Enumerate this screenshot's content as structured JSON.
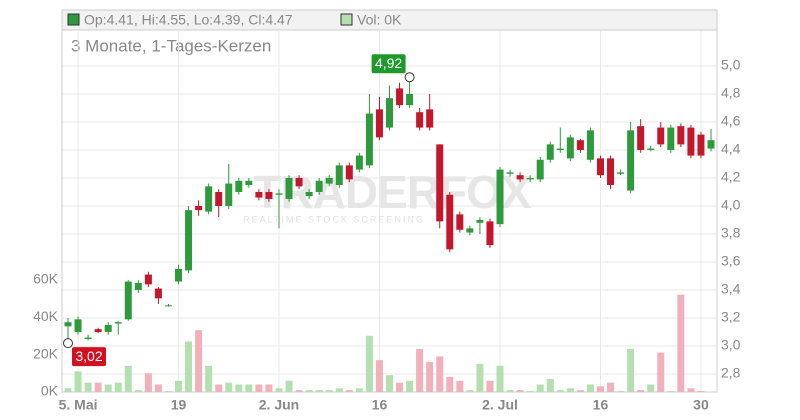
{
  "chart_data": {
    "type": "candlestick",
    "title": "3 Monate, 1-Tages-Kerzen",
    "legend": [
      "Op:4.41, Hi:4.55, Lo:4.39, Cl:4.47",
      "Vol: 0K"
    ],
    "watermark": {
      "title": "TRADERFOX",
      "subtitle": "REALTIME STOCK SCREENING"
    },
    "categories": [
      null,
      "5. Mai",
      null,
      null,
      null,
      null,
      null,
      null,
      null,
      null,
      null,
      "19",
      null,
      null,
      null,
      null,
      null,
      null,
      null,
      null,
      null,
      "2. Jun",
      null,
      null,
      null,
      null,
      null,
      null,
      null,
      null,
      null,
      "16",
      null,
      null,
      null,
      null,
      null,
      null,
      null,
      null,
      null,
      null,
      null,
      "2. Jul",
      null,
      null,
      null,
      null,
      null,
      null,
      null,
      null,
      null,
      "16",
      null,
      null,
      null,
      null,
      null,
      null,
      null,
      null,
      null,
      "30",
      null
    ],
    "open": [
      3.14,
      3.1,
      3.05,
      3.12,
      3.1,
      3.16,
      3.19,
      3.4,
      3.51,
      3.41,
      3.29,
      3.46,
      3.54,
      4.0,
      3.96,
      4.1,
      4.0,
      4.1,
      4.15,
      4.1,
      4.1,
      4.08,
      4.05,
      4.2,
      4.07,
      4.1,
      4.16,
      4.15,
      4.29,
      4.26,
      4.29,
      4.69,
      4.56,
      4.84,
      4.72,
      4.67,
      4.69,
      4.44,
      4.08,
      3.94,
      3.81,
      3.88,
      3.89,
      3.87,
      4.23,
      4.22,
      4.19,
      4.19,
      4.33,
      4.4,
      4.34,
      4.47,
      4.33,
      4.34,
      4.34,
      4.23,
      4.11,
      4.57,
      4.4,
      4.56,
      4.4,
      4.57,
      4.56,
      4.51,
      4.41
    ],
    "high": [
      3.2,
      3.21,
      3.08,
      3.13,
      3.17,
      3.18,
      3.47,
      3.47,
      3.53,
      3.42,
      3.3,
      3.58,
      4.0,
      4.04,
      4.16,
      4.12,
      4.3,
      4.2,
      4.2,
      4.12,
      4.12,
      4.12,
      4.22,
      4.22,
      4.12,
      4.2,
      4.22,
      4.31,
      4.31,
      4.38,
      4.8,
      4.78,
      4.86,
      4.88,
      4.92,
      4.7,
      4.8,
      4.44,
      4.1,
      3.96,
      3.86,
      3.92,
      3.91,
      4.28,
      4.26,
      4.24,
      4.22,
      4.35,
      4.46,
      4.56,
      4.51,
      4.48,
      4.56,
      4.36,
      4.36,
      4.26,
      4.6,
      4.62,
      4.43,
      4.6,
      4.58,
      4.59,
      4.58,
      4.53,
      4.55
    ],
    "low": [
      3.02,
      3.08,
      3.04,
      3.09,
      3.08,
      3.08,
      3.18,
      3.38,
      3.42,
      3.3,
      3.28,
      3.44,
      3.52,
      3.93,
      3.94,
      3.92,
      3.98,
      4.08,
      4.13,
      4.04,
      4.03,
      3.84,
      4.03,
      4.12,
      4.05,
      4.08,
      4.14,
      4.13,
      4.17,
      4.24,
      4.27,
      4.47,
      4.54,
      4.7,
      4.7,
      4.54,
      4.54,
      3.84,
      3.67,
      3.81,
      3.79,
      3.8,
      3.7,
      3.85,
      4.21,
      4.17,
      4.17,
      4.17,
      4.31,
      4.38,
      4.32,
      4.38,
      4.31,
      4.2,
      4.12,
      4.22,
      4.09,
      4.38,
      4.39,
      4.42,
      4.38,
      4.42,
      4.34,
      4.34,
      4.39
    ],
    "close": [
      3.17,
      3.19,
      3.06,
      3.1,
      3.15,
      3.17,
      3.46,
      3.45,
      3.44,
      3.34,
      3.29,
      3.55,
      3.97,
      3.97,
      4.14,
      4.0,
      4.16,
      4.18,
      4.18,
      4.06,
      4.05,
      4.09,
      4.2,
      4.14,
      4.1,
      4.18,
      4.2,
      4.29,
      4.19,
      4.36,
      4.66,
      4.49,
      4.77,
      4.72,
      4.8,
      4.56,
      4.56,
      3.89,
      3.69,
      3.83,
      3.84,
      3.9,
      3.72,
      4.26,
      4.24,
      4.19,
      4.2,
      4.33,
      4.44,
      4.41,
      4.49,
      4.4,
      4.54,
      4.22,
      4.15,
      4.24,
      4.54,
      4.4,
      4.41,
      4.44,
      4.56,
      4.44,
      4.36,
      4.36,
      4.47
    ],
    "volume": [
      2,
      11,
      5,
      5,
      4,
      5,
      14,
      1,
      10,
      4,
      0.5,
      6,
      27,
      33,
      14,
      4,
      5,
      4,
      4,
      4,
      4,
      2,
      6,
      1,
      1,
      1,
      1,
      2,
      1,
      2,
      30,
      17,
      9,
      5,
      6,
      23,
      16,
      19,
      8,
      6,
      1,
      15,
      6,
      14,
      1,
      1,
      0.5,
      4,
      7,
      1,
      2,
      1,
      4,
      3,
      5,
      0.5,
      23,
      1,
      4,
      21,
      0.5,
      52,
      2,
      0.5,
      0
    ],
    "up_color": "#2e9a3c",
    "down_color": "#c3172b",
    "up_volume_color": "#b4dfae",
    "down_volume_color": "#f1b0ba",
    "ylim": [
      2.671,
      5.4
    ],
    "yticks": [
      {
        "value": 2.8,
        "label": "2,8"
      },
      {
        "value": 3.0,
        "label": "3,0"
      },
      {
        "value": 3.2,
        "label": "3,2"
      },
      {
        "value": 3.4,
        "label": "3,4"
      },
      {
        "value": 3.6,
        "label": "3,6"
      },
      {
        "value": 3.8,
        "label": "3,8"
      },
      {
        "value": 4.0,
        "label": "4,0"
      },
      {
        "value": 4.2,
        "label": "4,2"
      },
      {
        "value": 4.4,
        "label": "4,4"
      },
      {
        "value": 4.6,
        "label": "4,6"
      },
      {
        "value": 4.8,
        "label": "4,8"
      },
      {
        "value": 5.0,
        "label": "5,0"
      }
    ],
    "y2lim": [
      0,
      204
    ],
    "y2ticks": [
      {
        "value": 0,
        "label": "0K"
      },
      {
        "value": 20,
        "label": "20K"
      },
      {
        "value": 40,
        "label": "40K"
      },
      {
        "value": 60,
        "label": "60K"
      }
    ],
    "annotations": [
      {
        "value": 4.92,
        "label": "4,92"
      },
      {
        "value": 3.02,
        "label": "3,02"
      }
    ],
    "grid": true
  }
}
